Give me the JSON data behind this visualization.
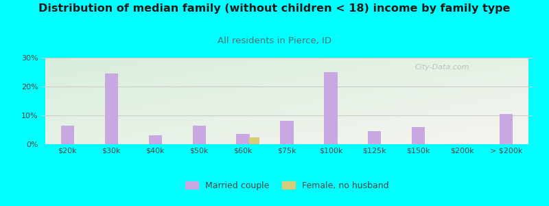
{
  "title": "Distribution of median family (without children < 18) income by family type",
  "subtitle": "All residents in Pierce, ID",
  "categories": [
    "$20k",
    "$30k",
    "$40k",
    "$50k",
    "$60k",
    "$75k",
    "$100k",
    "$125k",
    "$150k",
    "$200k",
    "> $200k"
  ],
  "married_couple": [
    6.5,
    24.5,
    3.0,
    6.5,
    3.5,
    8.0,
    25.0,
    4.5,
    6.0,
    0.0,
    10.5
  ],
  "female_no_husband": [
    0.0,
    0.0,
    0.0,
    0.0,
    2.5,
    0.0,
    0.0,
    0.0,
    0.0,
    0.0,
    0.0
  ],
  "bar_color_married": "#c8a8e0",
  "bar_color_female": "#d4cc7a",
  "bg_color": "#00ffff",
  "title_color": "#1a1a1a",
  "subtitle_color": "#4a7070",
  "axis_color": "#444444",
  "grid_color": "#cccccc",
  "ylim": [
    0,
    30
  ],
  "yticks": [
    0,
    10,
    20,
    30
  ],
  "bar_width": 0.3,
  "title_fontsize": 11.5,
  "subtitle_fontsize": 9.5,
  "watermark": "City-Data.com"
}
